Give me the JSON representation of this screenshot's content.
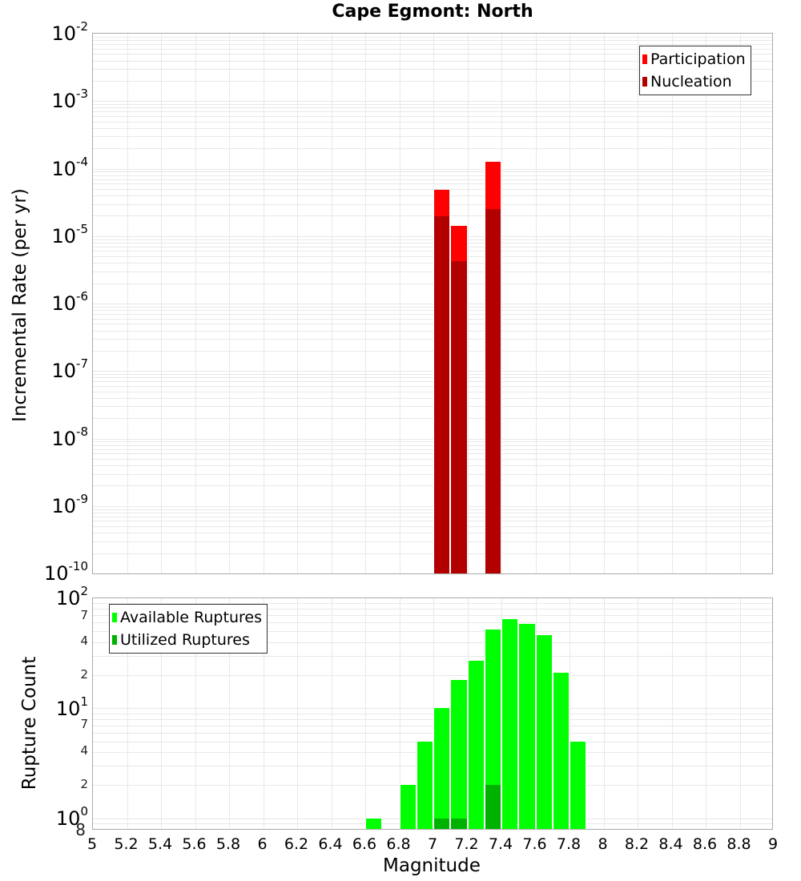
{
  "title": "Cape Egmont: North",
  "top_panel": {
    "ylabel": "Incremental Rate (per yr)",
    "legend": [
      {
        "label": "Participation",
        "color": "#ff0000"
      },
      {
        "label": "Nucleation",
        "color": "#b20000"
      }
    ],
    "y_ticks": [
      "-2",
      "-3",
      "-4",
      "-5",
      "-6",
      "-7",
      "-8",
      "-9",
      "-10"
    ]
  },
  "bottom_panel": {
    "ylabel": "Rupture Count",
    "legend": [
      {
        "label": "Available Ruptures",
        "color": "#00ff00"
      },
      {
        "label": "Utilized Ruptures",
        "color": "#00b200"
      }
    ],
    "y_major_ticks": [
      "2",
      "1",
      "0"
    ],
    "y_minor_labels": [
      "7",
      "4",
      "2",
      "7",
      "4",
      "2",
      "8"
    ]
  },
  "xlabel": "Magnitude",
  "x_ticks": [
    "5",
    "5.2",
    "5.4",
    "5.6",
    "5.8",
    "6",
    "6.2",
    "6.4",
    "6.6",
    "6.8",
    "7",
    "7.2",
    "7.4",
    "7.6",
    "7.8",
    "8",
    "8.2",
    "8.4",
    "8.6",
    "8.8",
    "9"
  ],
  "chart_data": [
    {
      "type": "bar",
      "title": "Cape Egmont: North",
      "xlabel": "Magnitude",
      "ylabel": "Incremental Rate (per yr)",
      "yscale": "log",
      "ylim": [
        1e-10,
        0.01
      ],
      "xlim": [
        5,
        9
      ],
      "grid": true,
      "legend_position": "top-right",
      "x": [
        7.05,
        7.15,
        7.35
      ],
      "series": [
        {
          "name": "Participation",
          "color": "#ff0000",
          "values": [
            4.9e-05,
            1.4e-05,
            0.000126
          ]
        },
        {
          "name": "Nucleation",
          "color": "#b20000",
          "values": [
            1.95e-05,
            4.2e-06,
            2.5e-05
          ]
        }
      ]
    },
    {
      "type": "bar",
      "xlabel": "Magnitude",
      "ylabel": "Rupture Count",
      "yscale": "log",
      "ylim": [
        0.8,
        100
      ],
      "xlim": [
        5,
        9
      ],
      "grid": true,
      "legend_position": "top-left",
      "x": [
        6.65,
        6.85,
        6.95,
        7.05,
        7.15,
        7.25,
        7.35,
        7.45,
        7.55,
        7.65,
        7.75,
        7.85
      ],
      "series": [
        {
          "name": "Available Ruptures",
          "color": "#00ff00",
          "values": [
            1,
            2,
            5,
            10,
            18,
            27,
            52,
            65,
            58,
            46,
            21,
            5
          ]
        },
        {
          "name": "Utilized Ruptures",
          "color": "#00b200",
          "values": [
            0,
            0,
            0,
            1,
            1,
            0,
            2,
            0,
            0,
            0,
            0,
            0
          ]
        }
      ]
    }
  ]
}
